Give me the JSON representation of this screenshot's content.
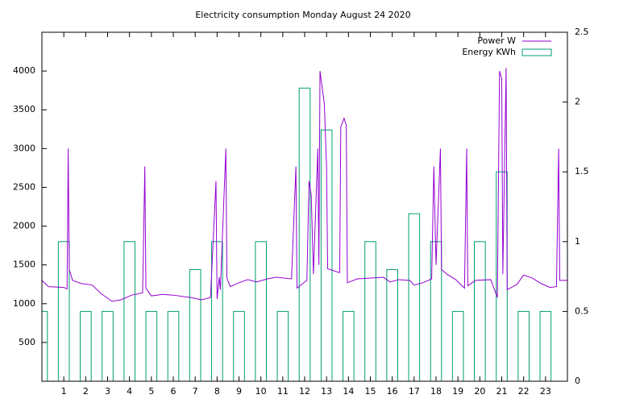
{
  "chart_data": {
    "type": "combo",
    "title": "Electricity consumption Monday August 24 2020",
    "xlim": [
      0,
      24
    ],
    "xticks": [
      1,
      2,
      3,
      4,
      5,
      6,
      7,
      8,
      9,
      10,
      11,
      12,
      13,
      14,
      15,
      16,
      17,
      18,
      19,
      20,
      21,
      22,
      23
    ],
    "ylim": [
      0,
      4500
    ],
    "yticks": [
      500,
      1000,
      1500,
      2000,
      2500,
      3000,
      3500,
      4000
    ],
    "y2lim": [
      0,
      2.5
    ],
    "y2ticks": [
      0,
      0.5,
      1,
      1.5,
      2,
      2.5
    ],
    "legend": "top-right",
    "series": [
      {
        "name": "Power W",
        "type": "line",
        "color": "#9400d3",
        "x": [
          0,
          0.3,
          1.0,
          1.15,
          1.2,
          1.25,
          1.4,
          1.8,
          2.3,
          2.7,
          3.2,
          3.6,
          4.1,
          4.6,
          4.7,
          4.75,
          5.0,
          5.5,
          6.0,
          6.8,
          7.3,
          7.7,
          7.95,
          8.0,
          8.1,
          8.15,
          8.4,
          8.45,
          8.6,
          9.0,
          9.4,
          9.8,
          10.3,
          10.7,
          11.4,
          11.6,
          11.65,
          12.1,
          12.2,
          12.3,
          12.4,
          12.6,
          12.65,
          12.7,
          12.9,
          13.0,
          13.05,
          13.6,
          13.65,
          13.8,
          13.9,
          13.95,
          14.4,
          15.0,
          15.6,
          15.9,
          16.3,
          16.8,
          17.0,
          17.4,
          17.8,
          17.9,
          18.0,
          18.2,
          18.25,
          18.5,
          18.9,
          19.3,
          19.4,
          19.45,
          19.8,
          20.5,
          20.8,
          20.9,
          21.0,
          21.05,
          21.2,
          21.25,
          21.7,
          22.0,
          22.4,
          22.8,
          23.2,
          23.5,
          23.6,
          23.65,
          24
        ],
        "values": [
          1300,
          1220,
          1210,
          1190,
          3000,
          1440,
          1300,
          1260,
          1240,
          1130,
          1030,
          1050,
          1110,
          1140,
          2770,
          1200,
          1100,
          1120,
          1110,
          1080,
          1050,
          1080,
          2580,
          1060,
          1340,
          1180,
          3000,
          1330,
          1220,
          1270,
          1310,
          1280,
          1320,
          1340,
          1320,
          2770,
          1200,
          1300,
          2580,
          2400,
          1380,
          3000,
          1500,
          4000,
          3570,
          2770,
          1450,
          1400,
          3280,
          3390,
          3300,
          1270,
          1320,
          1330,
          1340,
          1280,
          1310,
          1300,
          1240,
          1270,
          1320,
          2770,
          1500,
          3000,
          1440,
          1380,
          1310,
          1200,
          3000,
          1230,
          1300,
          1310,
          1080,
          4000,
          3900,
          1380,
          4040,
          1180,
          1250,
          1370,
          1330,
          1260,
          1210,
          1220,
          3000,
          1300,
          1300
        ]
      },
      {
        "name": "Energy KWh",
        "type": "bar",
        "axis": "y2",
        "color": "#009e73",
        "x": [
          0,
          1,
          2,
          3,
          4,
          5,
          6,
          7,
          8,
          9,
          10,
          11,
          12,
          13,
          14,
          15,
          16,
          17,
          18,
          19,
          20,
          21,
          22,
          23
        ],
        "values": [
          0.5,
          1.0,
          0.5,
          0.5,
          1.0,
          0.5,
          0.5,
          0.8,
          1.0,
          0.5,
          1.0,
          0.5,
          2.1,
          1.8,
          0.5,
          1.0,
          0.8,
          1.2,
          1.0,
          0.5,
          1.0,
          1.5,
          0.5,
          0.5
        ]
      }
    ]
  }
}
